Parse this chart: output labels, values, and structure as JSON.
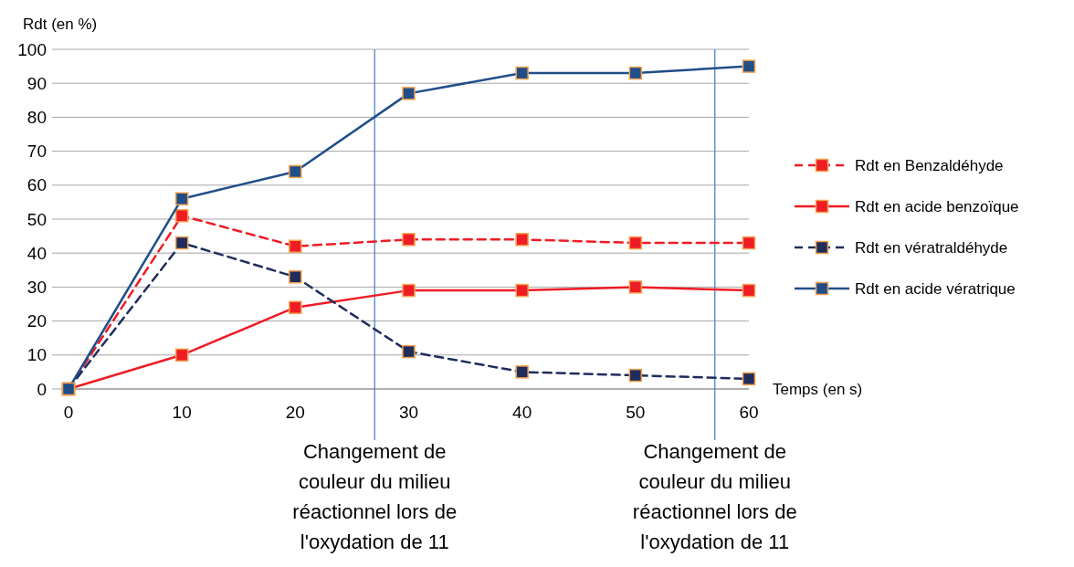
{
  "chart_data": {
    "type": "line",
    "xlabel": "Temps (en s)",
    "ylabel": "Rdt (en %)",
    "x": [
      0,
      10,
      20,
      30,
      40,
      50,
      60
    ],
    "series": [
      {
        "name": "Rdt en Benzaldéhyde",
        "color": "#ee1c25",
        "line_style": "dashed",
        "values": [
          0,
          51,
          42,
          44,
          44,
          43,
          43
        ]
      },
      {
        "name": "Rdt en acide benzoïque",
        "color": "#ee1c25",
        "line_style": "solid",
        "values": [
          0,
          10,
          24,
          29,
          29,
          30,
          29
        ]
      },
      {
        "name": "Rdt en vératraldéhyde",
        "color": "#1f2d5c",
        "line_style": "dashed",
        "values": [
          0,
          43,
          33,
          11,
          5,
          4,
          3
        ]
      },
      {
        "name": "Rdt en acide vératrique",
        "color": "#1f4e88",
        "line_style": "solid",
        "values": [
          0,
          56,
          64,
          87,
          93,
          93,
          95
        ]
      }
    ],
    "xlim": [
      0,
      60
    ],
    "xticks": [
      0,
      10,
      20,
      30,
      40,
      50,
      60
    ],
    "ylim": [
      0,
      100
    ],
    "yticks": [
      0,
      10,
      20,
      30,
      40,
      50,
      60,
      70,
      80,
      90,
      100
    ],
    "grid": "y",
    "legend": "right",
    "marker": "square",
    "ref_lines": [
      {
        "axis": "x",
        "value": 27,
        "label": "Changement de couleur du milieu réactionnel lors de l'oxydation de 11",
        "color": "#4a86c8"
      },
      {
        "axis": "x",
        "value": 57,
        "label": "Changement de couleur du milieu réactionnel lors de l'oxydation de 11",
        "color": "#4a86c8"
      }
    ]
  }
}
